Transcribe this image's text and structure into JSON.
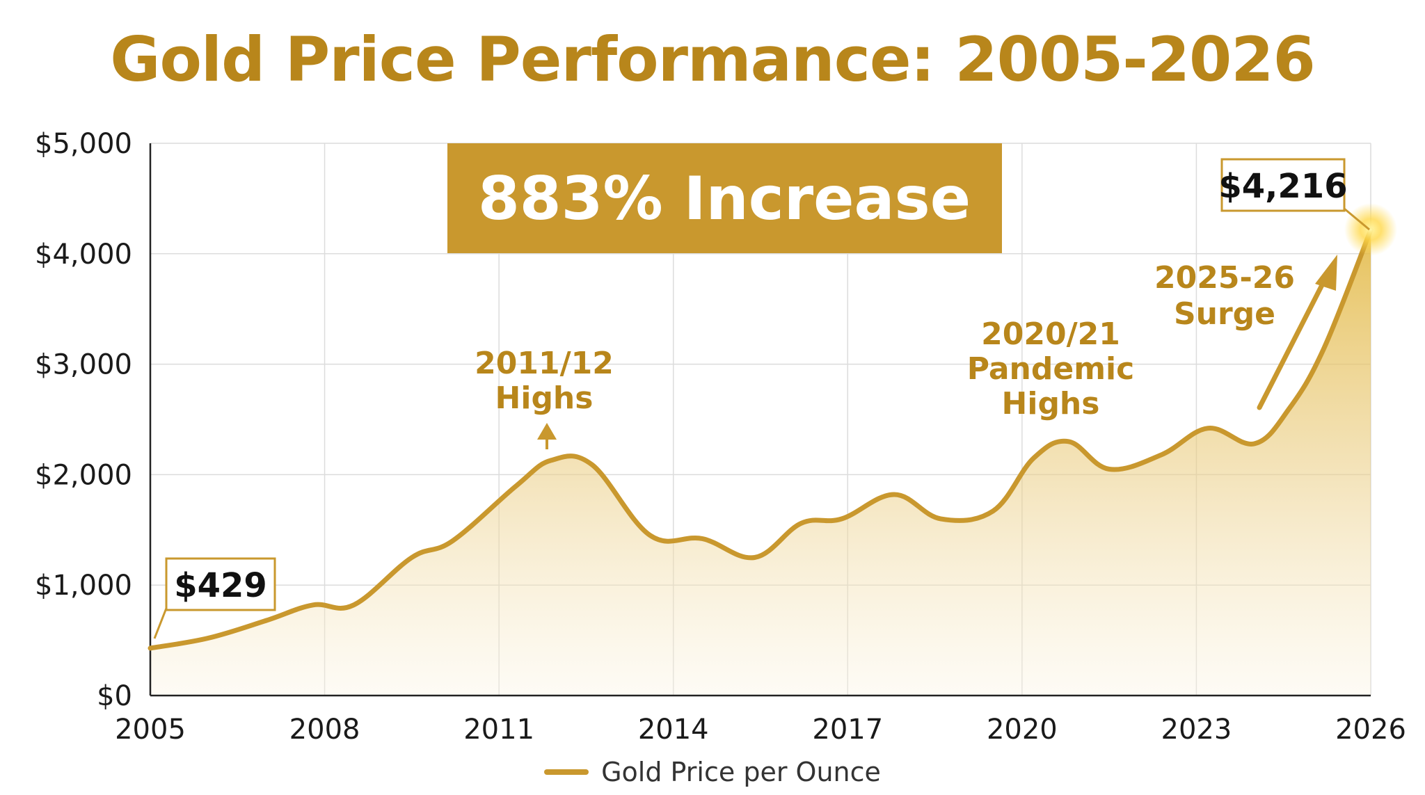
{
  "chart_data": {
    "type": "area",
    "title": "Gold Price Performance: 2005-2026",
    "xlabel": "",
    "ylabel": "",
    "x_ticks": [
      "2005",
      "2008",
      "2011",
      "2014",
      "2017",
      "2020",
      "2023",
      "2026"
    ],
    "y_ticks": [
      "$0",
      "$1,000",
      "$2,000",
      "$3,000",
      "$4,000",
      "$5,000"
    ],
    "xlim": [
      2005,
      2026
    ],
    "ylim": [
      0,
      5000
    ],
    "grid": true,
    "legend_position": "bottom-center",
    "series": [
      {
        "name": "Gold Price per Ounce",
        "x": [
          2005,
          2006,
          2007,
          2007.8,
          2008.5,
          2009.5,
          2010.2,
          2011.3,
          2011.9,
          2012.6,
          2013.6,
          2014.5,
          2015.4,
          2016.2,
          2016.9,
          2017.8,
          2018.6,
          2019.5,
          2020.2,
          2020.8,
          2021.5,
          2022.4,
          2023.2,
          2024,
          2024.6,
          2025.2,
          2026
        ],
        "values": [
          429,
          520,
          680,
          820,
          820,
          1250,
          1400,
          1900,
          2130,
          2090,
          1450,
          1420,
          1250,
          1560,
          1600,
          1820,
          1600,
          1670,
          2150,
          2300,
          2050,
          2180,
          2420,
          2280,
          2600,
          3150,
          4216
        ]
      }
    ],
    "annotations": {
      "banner": "883% Increase",
      "start_callout": "$429",
      "end_callout": "$4,216",
      "highs_2011": [
        "2011/12",
        "Highs"
      ],
      "pandemic_highs": [
        "2020/21",
        "Pandemic",
        "Highs"
      ],
      "surge": [
        "2025-26",
        "Surge"
      ]
    }
  },
  "colors": {
    "accent": "#c9982e",
    "title": "#b8861b",
    "banner": "#c9982e",
    "grid": "#dcdcdc"
  }
}
